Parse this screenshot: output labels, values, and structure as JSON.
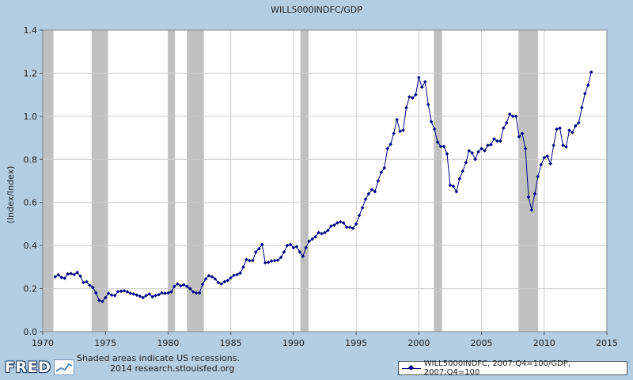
{
  "chart_data": {
    "type": "line",
    "title": "WILL5000INDFC/GDP",
    "ylabel": "(Index/Index)",
    "xlabel": "",
    "xlim": [
      1970,
      2015
    ],
    "ylim": [
      0.0,
      1.4
    ],
    "x_ticks": [
      1970,
      1975,
      1980,
      1985,
      1990,
      1995,
      2000,
      2005,
      2010,
      2015
    ],
    "y_ticks": [
      "0.0",
      "0.2",
      "0.4",
      "0.6",
      "0.8",
      "1.0",
      "1.2",
      "1.4"
    ],
    "grid": true,
    "legend_position": "bottom-right",
    "series_color": "#00007f",
    "recession_color": "#c0c0c0",
    "recessions": [
      [
        1970.0,
        1970.85
      ],
      [
        1973.9,
        1975.2
      ],
      [
        1980.0,
        1980.55
      ],
      [
        1981.5,
        1982.85
      ],
      [
        1990.55,
        1991.2
      ],
      [
        2001.2,
        2001.85
      ],
      [
        2007.95,
        2009.5
      ]
    ],
    "series": [
      {
        "name": "WILL5000INDFC, 2007:Q4=100/GDP, 2007:Q4=100",
        "x": [
          1971.0,
          1971.25,
          1971.5,
          1971.75,
          1972.0,
          1972.25,
          1972.5,
          1972.75,
          1973.0,
          1973.25,
          1973.5,
          1973.75,
          1974.0,
          1974.25,
          1974.5,
          1974.75,
          1975.0,
          1975.25,
          1975.5,
          1975.75,
          1976.0,
          1976.25,
          1976.5,
          1976.75,
          1977.0,
          1977.25,
          1977.5,
          1977.75,
          1978.0,
          1978.25,
          1978.5,
          1978.75,
          1979.0,
          1979.25,
          1979.5,
          1979.75,
          1980.0,
          1980.25,
          1980.5,
          1980.75,
          1981.0,
          1981.25,
          1981.5,
          1981.75,
          1982.0,
          1982.25,
          1982.5,
          1982.75,
          1983.0,
          1983.25,
          1983.5,
          1983.75,
          1984.0,
          1984.25,
          1984.5,
          1984.75,
          1985.0,
          1985.25,
          1985.5,
          1985.75,
          1986.0,
          1986.25,
          1986.5,
          1986.75,
          1987.0,
          1987.25,
          1987.5,
          1987.75,
          1988.0,
          1988.25,
          1988.5,
          1988.75,
          1989.0,
          1989.25,
          1989.5,
          1989.75,
          1990.0,
          1990.25,
          1990.5,
          1990.75,
          1991.0,
          1991.25,
          1991.5,
          1991.75,
          1992.0,
          1992.25,
          1992.5,
          1992.75,
          1993.0,
          1993.25,
          1993.5,
          1993.75,
          1994.0,
          1994.25,
          1994.5,
          1994.75,
          1995.0,
          1995.25,
          1995.5,
          1995.75,
          1996.0,
          1996.25,
          1996.5,
          1996.75,
          1997.0,
          1997.25,
          1997.5,
          1997.75,
          1998.0,
          1998.25,
          1998.5,
          1998.75,
          1999.0,
          1999.25,
          1999.5,
          1999.75,
          2000.0,
          2000.25,
          2000.5,
          2000.75,
          2001.0,
          2001.25,
          2001.5,
          2001.75,
          2002.0,
          2002.25,
          2002.5,
          2002.75,
          2003.0,
          2003.25,
          2003.5,
          2003.75,
          2004.0,
          2004.25,
          2004.5,
          2004.75,
          2005.0,
          2005.25,
          2005.5,
          2005.75,
          2006.0,
          2006.25,
          2006.5,
          2006.75,
          2007.0,
          2007.25,
          2007.5,
          2007.75,
          2008.0,
          2008.25,
          2008.5,
          2008.75,
          2009.0,
          2009.25,
          2009.5,
          2009.75,
          2010.0,
          2010.25,
          2010.5,
          2010.75,
          2011.0,
          2011.25,
          2011.5,
          2011.75,
          2012.0,
          2012.25,
          2012.5,
          2012.75,
          2013.0,
          2013.25,
          2013.5,
          2013.75
        ],
        "y": [
          0.255,
          0.264,
          0.252,
          0.248,
          0.268,
          0.27,
          0.265,
          0.275,
          0.258,
          0.228,
          0.232,
          0.215,
          0.205,
          0.18,
          0.145,
          0.14,
          0.158,
          0.178,
          0.17,
          0.168,
          0.186,
          0.188,
          0.19,
          0.185,
          0.178,
          0.175,
          0.17,
          0.165,
          0.158,
          0.168,
          0.175,
          0.162,
          0.168,
          0.172,
          0.18,
          0.178,
          0.18,
          0.185,
          0.21,
          0.222,
          0.213,
          0.218,
          0.21,
          0.2,
          0.185,
          0.18,
          0.18,
          0.22,
          0.245,
          0.26,
          0.255,
          0.245,
          0.228,
          0.222,
          0.232,
          0.238,
          0.25,
          0.262,
          0.265,
          0.272,
          0.3,
          0.335,
          0.33,
          0.33,
          0.37,
          0.385,
          0.405,
          0.32,
          0.322,
          0.328,
          0.33,
          0.332,
          0.345,
          0.37,
          0.4,
          0.405,
          0.39,
          0.395,
          0.37,
          0.35,
          0.39,
          0.42,
          0.43,
          0.44,
          0.46,
          0.455,
          0.46,
          0.47,
          0.49,
          0.495,
          0.505,
          0.51,
          0.505,
          0.485,
          0.485,
          0.48,
          0.5,
          0.54,
          0.575,
          0.615,
          0.64,
          0.66,
          0.65,
          0.7,
          0.74,
          0.76,
          0.85,
          0.87,
          0.92,
          0.985,
          0.93,
          0.935,
          1.04,
          1.09,
          1.085,
          1.1,
          1.18,
          1.135,
          1.16,
          1.055,
          0.975,
          0.94,
          0.88,
          0.86,
          0.86,
          0.825,
          0.68,
          0.675,
          0.65,
          0.71,
          0.745,
          0.785,
          0.84,
          0.83,
          0.8,
          0.835,
          0.85,
          0.84,
          0.865,
          0.868,
          0.895,
          0.885,
          0.885,
          0.945,
          0.97,
          1.01,
          1.0,
          1.0,
          0.905,
          0.92,
          0.85,
          0.625,
          0.565,
          0.64,
          0.72,
          0.775,
          0.808,
          0.815,
          0.78,
          0.865,
          0.94,
          0.945,
          0.865,
          0.858,
          0.935,
          0.925,
          0.955,
          0.97,
          1.04,
          1.105,
          1.145,
          1.205
        ]
      }
    ]
  },
  "footer": {
    "logo_text": "FRED",
    "note_line1": "Shaded areas indicate US recessions.",
    "note_line2": "2014 research.stlouisfed.org"
  },
  "legend": {
    "label": "WILL5000INDFC, 2007:Q4=100/GDP, 2007:Q4=100"
  }
}
